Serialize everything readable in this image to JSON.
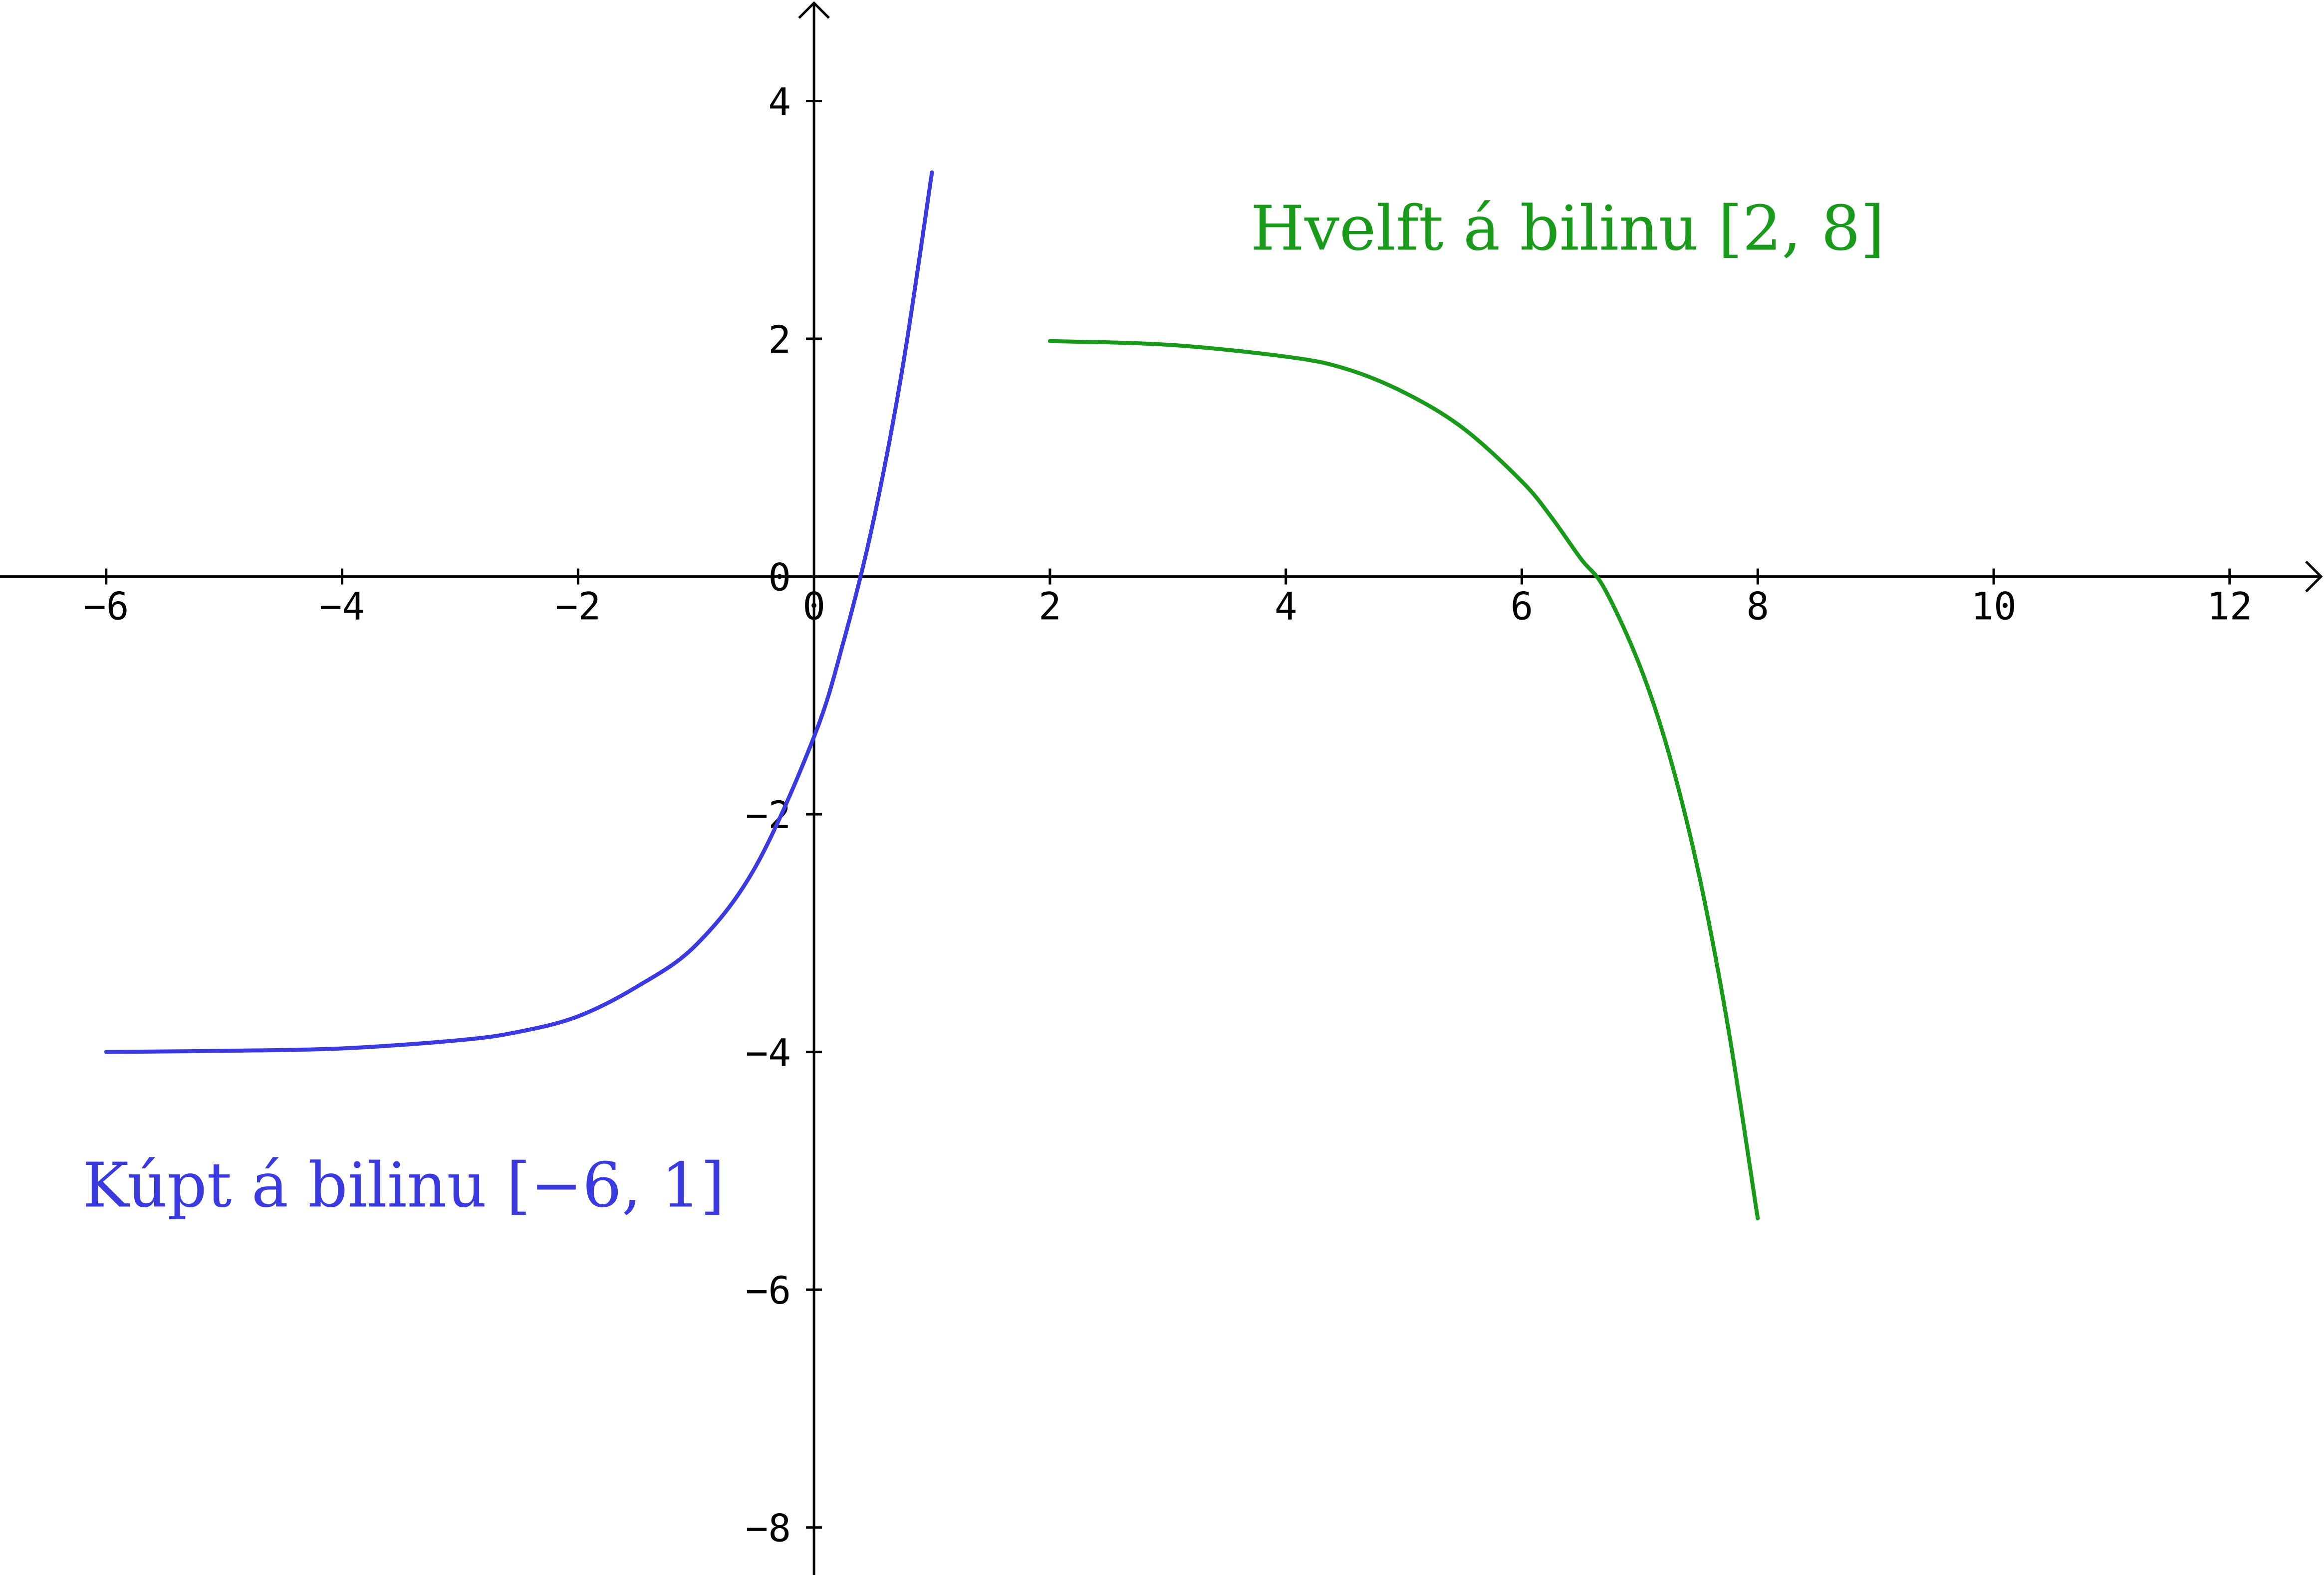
{
  "chart_data": {
    "type": "line",
    "xlim": [
      -6.9,
      12.8
    ],
    "ylim": [
      -8.4,
      4.85
    ],
    "x_ticks": [
      -6,
      -4,
      -2,
      0,
      2,
      4,
      6,
      8,
      10,
      12
    ],
    "y_ticks": [
      4,
      2,
      0,
      -2,
      -4,
      -6,
      -8
    ],
    "x_tick_labels": [
      "−6",
      "−4",
      "−2",
      "0",
      "2",
      "4",
      "6",
      "8",
      "10",
      "12"
    ],
    "y_tick_labels": [
      "4",
      "2",
      "0",
      "−2",
      "−4",
      "−6",
      "−8"
    ],
    "series": [
      {
        "color": "#3a3ae0",
        "x": [
          -6,
          -5,
          -4,
          -3,
          -2.5,
          -2,
          -1.5,
          -1,
          -0.5,
          0,
          0.25,
          0.5,
          0.75,
          1
        ],
        "y": [
          -4.0,
          -3.99,
          -3.97,
          -3.9,
          -3.83,
          -3.7,
          -3.45,
          -3.1,
          -2.45,
          -1.35,
          -0.55,
          0.45,
          1.75,
          3.4
        ]
      },
      {
        "color": "#1a9a1a",
        "x": [
          2,
          3,
          4,
          4.5,
          5,
          5.5,
          6,
          6.25,
          6.5,
          6.7,
          7,
          7.25,
          7.5,
          7.75,
          8
        ],
        "y": [
          1.98,
          1.95,
          1.85,
          1.75,
          1.55,
          1.25,
          0.8,
          0.5,
          0.15,
          -0.1,
          -0.75,
          -1.5,
          -2.5,
          -3.8,
          -5.4
        ]
      }
    ],
    "annotations": [
      {
        "text": "Hvelft á bilinu [2, 8]",
        "color": "#1a9a1a",
        "x": 3.7,
        "y": 2.75
      },
      {
        "text": "Kúpt á bilinu [−6, 1]",
        "color": "#3a3ae0",
        "x": -6.2,
        "y": -5.3
      }
    ],
    "grid": false
  }
}
